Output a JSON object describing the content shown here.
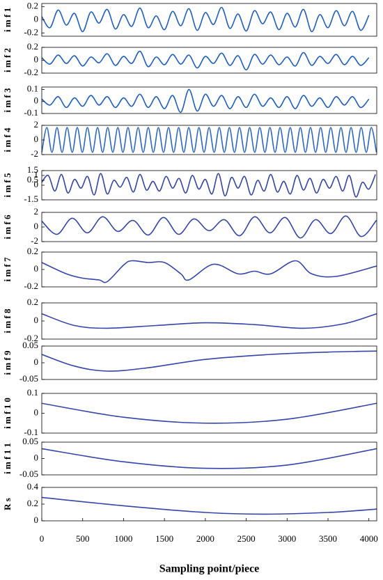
{
  "chart_data": [
    {
      "type": "line",
      "ylabel": "i m f 1",
      "xlim": [
        0,
        4096
      ],
      "ylim": [
        -0.25,
        0.25
      ],
      "yticks": [
        0.2,
        0,
        -0.2
      ],
      "color": "#1f5fc4",
      "x": [
        0,
        100,
        200,
        300,
        400,
        500,
        600,
        700,
        800,
        900,
        1000,
        1100,
        1200,
        1300,
        1400,
        1500,
        1600,
        1700,
        1800,
        1900,
        2000,
        2100,
        2200,
        2300,
        2400,
        2500,
        2600,
        2700,
        2800,
        2900,
        3000,
        3100,
        3200,
        3300,
        3400,
        3500,
        3600,
        3700,
        3800,
        3900,
        4000
      ],
      "values": [
        0.05,
        -0.12,
        0.15,
        -0.08,
        0.1,
        -0.18,
        0.12,
        -0.05,
        0.16,
        -0.14,
        0.08,
        -0.1,
        0.18,
        -0.12,
        0.06,
        -0.15,
        0.13,
        -0.09,
        0.17,
        -0.16,
        0.11,
        -0.07,
        0.19,
        -0.13,
        0.09,
        -0.17,
        0.14,
        -0.06,
        0.12,
        -0.15,
        0.1,
        -0.11,
        0.16,
        -0.18,
        0.08,
        -0.12,
        0.14,
        -0.09,
        0.13,
        -0.16,
        0.07
      ]
    },
    {
      "type": "line",
      "ylabel": "i m f 2",
      "xlim": [
        0,
        4096
      ],
      "ylim": [
        -0.2,
        0.2
      ],
      "yticks": [
        0.2,
        0,
        -0.2
      ],
      "color": "#1f5fc4",
      "x": [
        0,
        100,
        200,
        300,
        400,
        500,
        600,
        700,
        800,
        900,
        1000,
        1100,
        1200,
        1300,
        1400,
        1500,
        1600,
        1700,
        1800,
        1900,
        2000,
        2100,
        2200,
        2300,
        2400,
        2500,
        2600,
        2700,
        2800,
        2900,
        3000,
        3100,
        3200,
        3300,
        3400,
        3500,
        3600,
        3700,
        3800,
        3900,
        4000
      ],
      "values": [
        0.04,
        -0.06,
        0.08,
        -0.05,
        0.07,
        -0.09,
        0.05,
        -0.04,
        0.1,
        -0.08,
        0.06,
        -0.05,
        0.14,
        -0.1,
        0.05,
        -0.07,
        0.09,
        -0.06,
        0.08,
        -0.12,
        0.06,
        -0.05,
        0.11,
        -0.08,
        0.07,
        -0.15,
        0.09,
        -0.06,
        0.08,
        -0.07,
        0.05,
        -0.09,
        0.12,
        -0.08,
        0.06,
        -0.05,
        0.09,
        -0.07,
        0.06,
        -0.08,
        0.04
      ]
    },
    {
      "type": "line",
      "ylabel": "i m f 3",
      "xlim": [
        0,
        4096
      ],
      "ylim": [
        -0.1,
        0.12
      ],
      "yticks": [
        0.1,
        0,
        -0.1
      ],
      "color": "#1f5fc4",
      "x": [
        0,
        100,
        200,
        300,
        400,
        500,
        600,
        700,
        800,
        900,
        1000,
        1100,
        1200,
        1300,
        1400,
        1500,
        1600,
        1700,
        1800,
        1900,
        2000,
        2100,
        2200,
        2300,
        2400,
        2500,
        2600,
        2700,
        2800,
        2900,
        3000,
        3100,
        3200,
        3300,
        3400,
        3500,
        3600,
        3700,
        3800,
        3900,
        4000
      ],
      "values": [
        0.02,
        -0.03,
        0.04,
        -0.05,
        0.03,
        -0.04,
        0.05,
        -0.03,
        0.04,
        -0.05,
        0.03,
        -0.04,
        0.06,
        -0.05,
        0.04,
        -0.06,
        0.05,
        -0.09,
        0.1,
        -0.08,
        0.06,
        -0.04,
        0.05,
        -0.06,
        0.04,
        -0.05,
        0.06,
        -0.04,
        0.03,
        -0.05,
        0.04,
        -0.06,
        0.05,
        -0.04,
        0.03,
        -0.05,
        0.04,
        -0.03,
        0.04,
        -0.05,
        0.02
      ]
    },
    {
      "type": "line",
      "ylabel": "i m f 4",
      "xlim": [
        0,
        4096
      ],
      "ylim": [
        -2,
        2
      ],
      "yticks": [
        2,
        0,
        -2
      ],
      "color": "#2a66c8",
      "x": [
        0,
        62,
        124,
        186,
        248,
        310,
        372,
        434,
        496,
        558,
        620,
        682,
        744,
        806,
        868,
        930,
        992,
        1054,
        1116,
        1178,
        1240,
        1302,
        1364,
        1426,
        1488,
        1550,
        1612,
        1674,
        1736,
        1798,
        1860,
        1922,
        1984,
        2046,
        2108,
        2170,
        2232,
        2294,
        2356,
        2418,
        2480,
        2542,
        2604,
        2666,
        2728,
        2790,
        2852,
        2914,
        2976,
        3038,
        3100,
        3162,
        3224,
        3286,
        3348,
        3410,
        3472,
        3534,
        3596,
        3658,
        3720,
        3782,
        3844,
        3906,
        3968,
        4030,
        4092
      ],
      "values": [
        -1.7,
        1.7,
        -1.7,
        1.7,
        -1.7,
        1.7,
        -1.7,
        1.7,
        -1.7,
        1.7,
        -1.7,
        1.7,
        -1.7,
        1.7,
        -1.7,
        1.7,
        -1.7,
        1.7,
        -1.7,
        1.7,
        -1.7,
        1.7,
        -1.7,
        1.7,
        -1.7,
        1.7,
        -1.7,
        1.7,
        -1.7,
        1.7,
        -1.7,
        1.7,
        -1.7,
        1.7,
        -1.7,
        1.7,
        -1.7,
        1.7,
        -1.7,
        1.7,
        -1.7,
        1.7,
        -1.7,
        1.7,
        -1.7,
        1.7,
        -1.7,
        1.7,
        -1.7,
        1.7,
        -1.7,
        1.7,
        -1.7,
        1.7,
        -1.7,
        1.7,
        -1.7,
        1.7,
        -1.7,
        1.7,
        -1.7,
        1.7,
        -1.7,
        1.7,
        -1.7,
        1.7,
        -1.7
      ]
    },
    {
      "type": "line",
      "ylabel": "i m f 5",
      "xlim": [
        0,
        4096
      ],
      "ylim": [
        -1.5,
        1.5
      ],
      "yticks": [
        1.5,
        1,
        0.5,
        0,
        -1.5
      ],
      "color": "#3344aa",
      "x": [
        0,
        80,
        160,
        240,
        320,
        400,
        480,
        560,
        640,
        720,
        800,
        880,
        960,
        1040,
        1120,
        1200,
        1280,
        1360,
        1440,
        1520,
        1600,
        1680,
        1760,
        1840,
        1920,
        2000,
        2080,
        2160,
        2240,
        2320,
        2400,
        2480,
        2560,
        2640,
        2720,
        2800,
        2880,
        2960,
        3040,
        3120,
        3200,
        3280,
        3360,
        3440,
        3520,
        3600,
        3680,
        3760,
        3840,
        3920,
        4000,
        4080
      ],
      "values": [
        0.3,
        1.0,
        -0.6,
        1.1,
        -0.8,
        0.6,
        -0.3,
        0.9,
        -1.0,
        1.2,
        -0.9,
        0.5,
        -0.2,
        0.8,
        -0.7,
        1.1,
        -0.5,
        0.4,
        -0.6,
        0.9,
        -0.3,
        0.7,
        -0.8,
        1.0,
        -0.4,
        0.6,
        -0.9,
        1.2,
        -1.1,
        0.8,
        -0.3,
        0.9,
        -1.0,
        0.5,
        -0.6,
        1.1,
        -0.7,
        0.4,
        -0.9,
        1.0,
        -0.5,
        0.7,
        -0.8,
        0.6,
        -0.3,
        0.9,
        -0.6,
        1.0,
        -1.2,
        0.3,
        -0.4,
        1.1
      ]
    },
    {
      "type": "line",
      "ylabel": "i m f 6",
      "xlim": [
        0,
        4096
      ],
      "ylim": [
        -2,
        2
      ],
      "yticks": [
        2,
        0,
        -2
      ],
      "color": "#3344aa",
      "x": [
        0,
        186,
        372,
        558,
        744,
        930,
        1116,
        1302,
        1488,
        1674,
        1860,
        2046,
        2232,
        2418,
        2604,
        2790,
        2976,
        3162,
        3348,
        3534,
        3720,
        3906,
        4092
      ],
      "values": [
        0.8,
        -1.0,
        1.2,
        -0.8,
        1.4,
        -0.6,
        0.9,
        -1.1,
        1.3,
        -1.0,
        1.1,
        -0.5,
        1.0,
        -1.2,
        1.4,
        -0.8,
        1.3,
        -1.5,
        1.0,
        -0.9,
        1.5,
        -1.3,
        0.9
      ]
    },
    {
      "type": "line",
      "ylabel": "i m f 7",
      "xlim": [
        0,
        4096
      ],
      "ylim": [
        -0.2,
        0.2
      ],
      "yticks": [
        0.2,
        0,
        -0.2
      ],
      "color": "#3344aa",
      "x": [
        0,
        300,
        500,
        700,
        800,
        1000,
        1100,
        1300,
        1500,
        1700,
        1800,
        2100,
        2400,
        2600,
        2800,
        3100,
        3300,
        3600,
        4096
      ],
      "values": [
        0.08,
        -0.05,
        -0.1,
        -0.12,
        -0.14,
        0.05,
        0.1,
        0.08,
        0.08,
        -0.05,
        -0.12,
        0.06,
        -0.05,
        -0.02,
        -0.05,
        0.1,
        -0.05,
        -0.08,
        0.04
      ]
    },
    {
      "type": "line",
      "ylabel": "i m f 8",
      "xlim": [
        0,
        4096
      ],
      "ylim": [
        -0.2,
        0.2
      ],
      "yticks": [
        0.2,
        0,
        -0.2
      ],
      "color": "#3344aa",
      "x": [
        0,
        400,
        800,
        1400,
        2000,
        2600,
        3200,
        3700,
        4096
      ],
      "values": [
        0.08,
        -0.05,
        -0.08,
        -0.05,
        -0.02,
        -0.04,
        -0.08,
        -0.03,
        0.08
      ]
    },
    {
      "type": "line",
      "ylabel": "i m f 9",
      "xlim": [
        0,
        4096
      ],
      "ylim": [
        -0.05,
        0.05
      ],
      "yticks": [
        0.05,
        0,
        -0.05
      ],
      "color": "#3344aa",
      "x": [
        0,
        400,
        800,
        1300,
        2000,
        2800,
        3500,
        4096
      ],
      "values": [
        0.025,
        -0.01,
        -0.025,
        -0.015,
        0.01,
        0.025,
        0.032,
        0.035
      ]
    },
    {
      "type": "line",
      "ylabel": "i m f 1 0",
      "xlim": [
        0,
        4096
      ],
      "ylim": [
        -0.1,
        0.1
      ],
      "yticks": [
        0.1,
        0,
        -0.1
      ],
      "color": "#3344aa",
      "x": [
        0,
        1000,
        2000,
        3000,
        4096
      ],
      "values": [
        0.05,
        -0.02,
        -0.05,
        -0.03,
        0.05
      ]
    },
    {
      "type": "line",
      "ylabel": "i m f 1 1",
      "xlim": [
        0,
        4096
      ],
      "ylim": [
        -0.05,
        0.05
      ],
      "yticks": [
        0.05,
        0,
        -0.05
      ],
      "color": "#3344aa",
      "x": [
        0,
        1000,
        2000,
        3000,
        4096
      ],
      "values": [
        0.03,
        -0.01,
        -0.03,
        -0.02,
        0.03
      ]
    },
    {
      "type": "line",
      "ylabel": "R s",
      "xlim": [
        0,
        4096
      ],
      "ylim": [
        0,
        0.4
      ],
      "yticks": [
        0.4,
        0.2,
        0
      ],
      "color": "#3344aa",
      "x": [
        0,
        1000,
        2000,
        2700,
        3500,
        4096
      ],
      "values": [
        0.28,
        0.18,
        0.1,
        0.08,
        0.1,
        0.14
      ],
      "xticks": [
        0,
        500,
        1000,
        1500,
        2000,
        2500,
        3000,
        3500,
        4000
      ],
      "xlabel": "Sampling point/piece"
    }
  ]
}
